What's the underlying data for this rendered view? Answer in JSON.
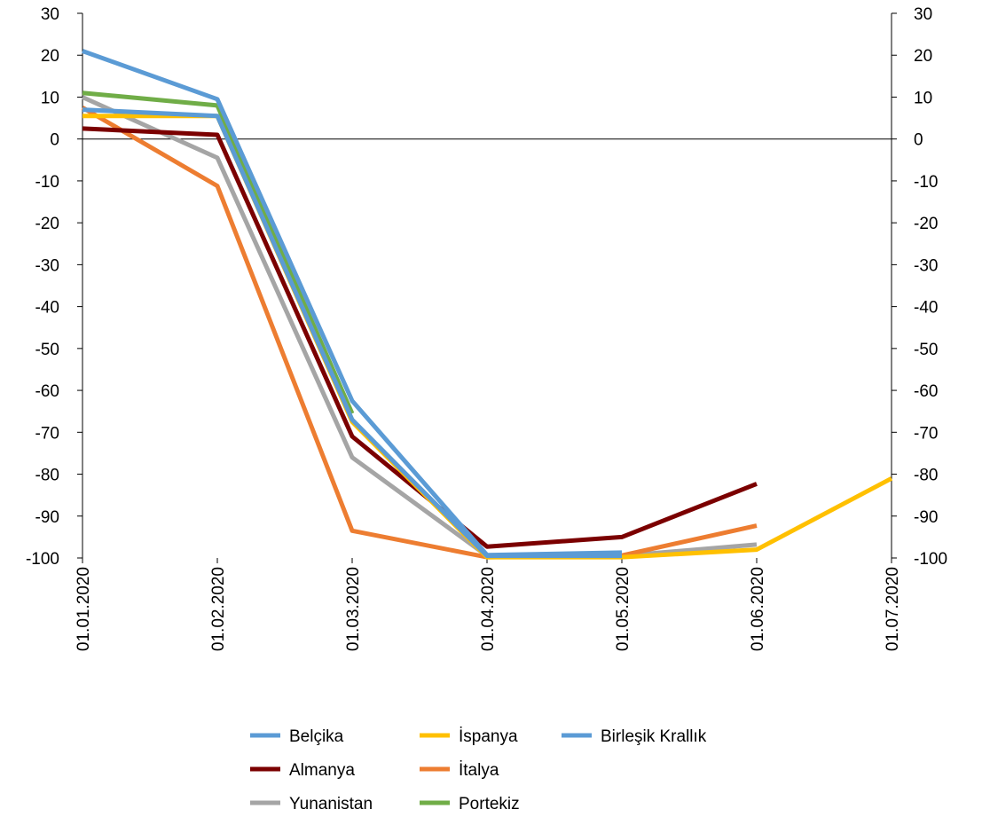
{
  "chart_data": {
    "type": "line",
    "title": "",
    "xlabel": "",
    "ylabel": "",
    "x": [
      "01.01.2020",
      "01.02.2020",
      "01.03.2020",
      "01.04.2020",
      "01.05.2020",
      "01.06.2020",
      "01.07.2020"
    ],
    "ylim": [
      -100,
      30
    ],
    "yticks": [
      30,
      20,
      10,
      0,
      -10,
      -20,
      -30,
      -40,
      -50,
      -60,
      -70,
      -80,
      -90,
      -100
    ],
    "secondary_axis": true,
    "zero_line": true,
    "grid": false,
    "legend_position": "bottom",
    "series": [
      {
        "name": "Belçika",
        "color": "#5B9BD5",
        "values": [
          7,
          5.5,
          -67,
          -99.5,
          -99.5,
          null,
          null
        ]
      },
      {
        "name": "Almanya",
        "color": "#7B0000",
        "values": [
          2.5,
          1,
          -71,
          -97.3,
          -95,
          -82.3,
          null
        ]
      },
      {
        "name": "Yunanistan",
        "color": "#A5A5A5",
        "values": [
          10,
          -4.5,
          -76,
          -99.5,
          -99.5,
          -96.8,
          null
        ]
      },
      {
        "name": "İspanya",
        "color": "#FFC000",
        "values": [
          5.5,
          5.5,
          -67.5,
          -99.8,
          -99.8,
          -98,
          -81
        ]
      },
      {
        "name": "İtalya",
        "color": "#ED7D31",
        "values": [
          7.5,
          -11.2,
          -93.5,
          -99.8,
          -99.4,
          -92.3,
          null
        ]
      },
      {
        "name": "Portekiz",
        "color": "#70AD47",
        "values": [
          11,
          8,
          -65.5,
          null,
          null,
          null,
          null
        ]
      },
      {
        "name": "Birleşik Krallık",
        "color": "#5B9BD5",
        "values": [
          21,
          9.5,
          -62.5,
          -99.3,
          -98.7,
          null,
          null
        ]
      }
    ],
    "legend_layout": [
      [
        "Belçika",
        "İspanya",
        "Birleşik Krallık"
      ],
      [
        "Almanya",
        "İtalya"
      ],
      [
        "Yunanistan",
        "Portekiz"
      ]
    ]
  }
}
